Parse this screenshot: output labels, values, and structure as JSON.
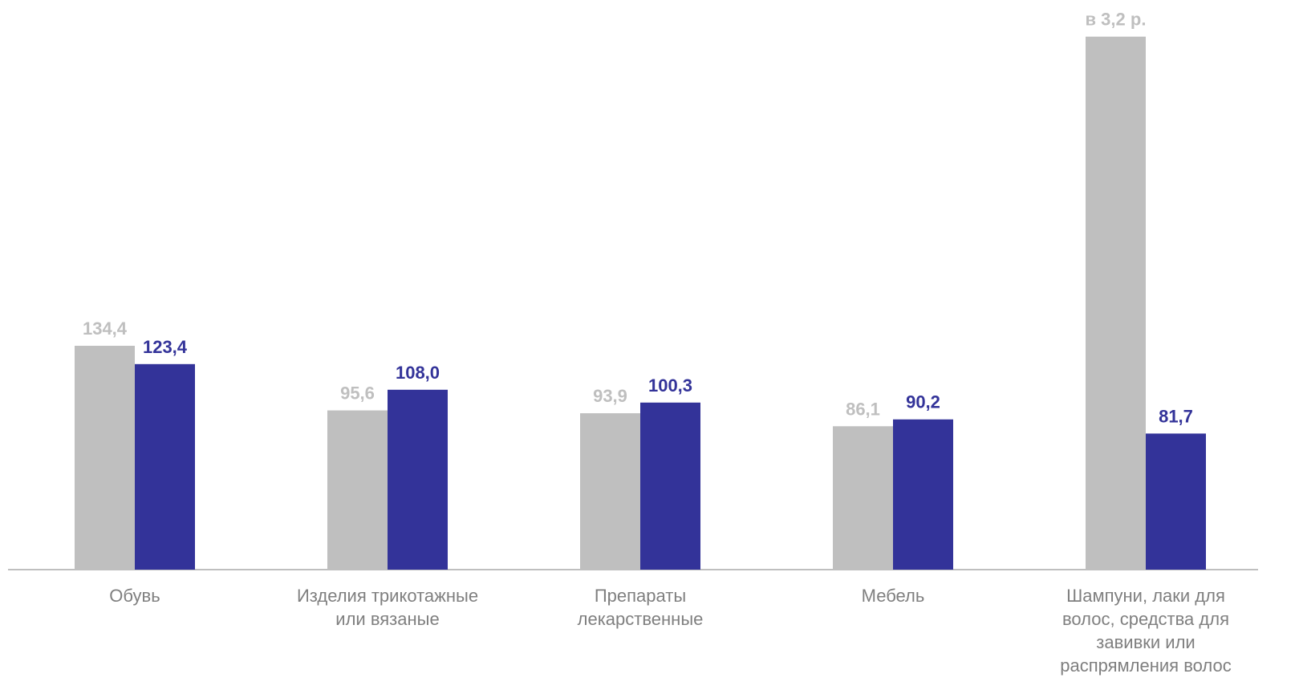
{
  "chart_data": {
    "type": "bar",
    "categories": [
      "Обувь",
      "Изделия трикотажные или вязаные",
      "Препараты лекарственные",
      "Мебель",
      "Шампуни, лаки для волос, средства для завивки или распрямления волос"
    ],
    "series": [
      {
        "color": "#bfbfbf",
        "values": [
          134.4,
          95.6,
          93.9,
          86.1,
          320
        ],
        "value_labels": [
          "134,4",
          "95,6",
          "93,9",
          "86,1",
          "в 3,2 р."
        ]
      },
      {
        "color": "#333399",
        "values": [
          123.4,
          108.0,
          100.3,
          90.2,
          81.7
        ],
        "value_labels": [
          "123,4",
          "108,0",
          "100,3",
          "90,2",
          "81,7"
        ]
      }
    ]
  }
}
